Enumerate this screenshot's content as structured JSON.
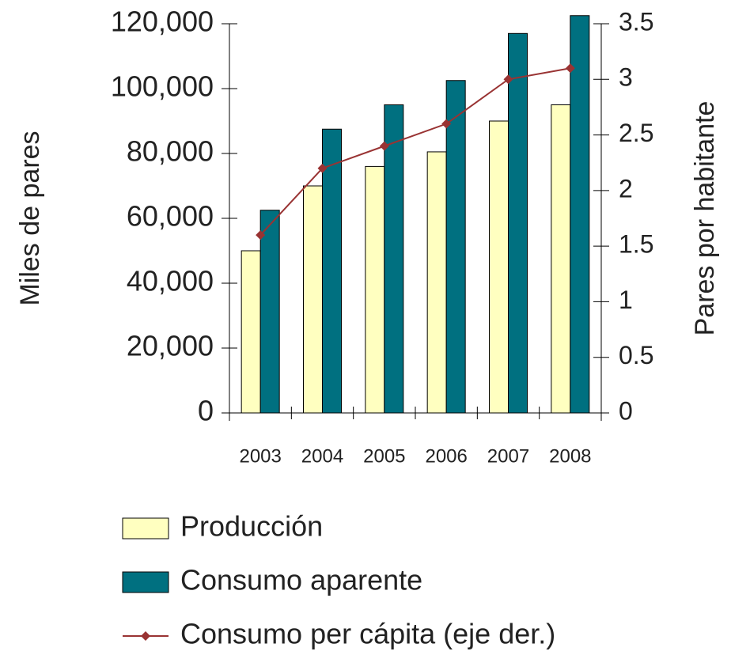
{
  "chart_data": {
    "type": "bar",
    "categories": [
      "2003",
      "2004",
      "2005",
      "2006",
      "2007",
      "2008"
    ],
    "series": [
      {
        "name": "Producción",
        "color": "#ffffc0",
        "values": [
          50000,
          70000,
          76000,
          80500,
          90000,
          95000
        ]
      },
      {
        "name": "Consumo aparente",
        "color": "#007080",
        "values": [
          62500,
          87500,
          95000,
          102500,
          117000,
          122500
        ]
      },
      {
        "name": "Consumo per cápita (eje der.)",
        "color": "#993333",
        "type": "line",
        "axis": "y2",
        "values": [
          1.6,
          2.2,
          2.4,
          2.6,
          3.0,
          3.1
        ]
      }
    ],
    "ylabel": "Miles de pares",
    "y2label": "Pares por habitante",
    "ylim": [
      0,
      120000
    ],
    "yticks": [
      0,
      {
        "value": 20000,
        "label": "20,000"
      },
      {
        "value": 40000,
        "label": "40,000"
      },
      {
        "value": 60000,
        "label": "60,000"
      },
      {
        "value": 80000,
        "label": "80,000"
      },
      {
        "value": 100000,
        "label": "100,000"
      },
      {
        "value": 120000,
        "label": "120,000"
      }
    ],
    "y2lim": [
      0,
      3.5
    ],
    "y2ticks": [
      0,
      0.5,
      1,
      1.5,
      2,
      2.5,
      3,
      3.5
    ],
    "grid": false,
    "legend": "bottom"
  }
}
